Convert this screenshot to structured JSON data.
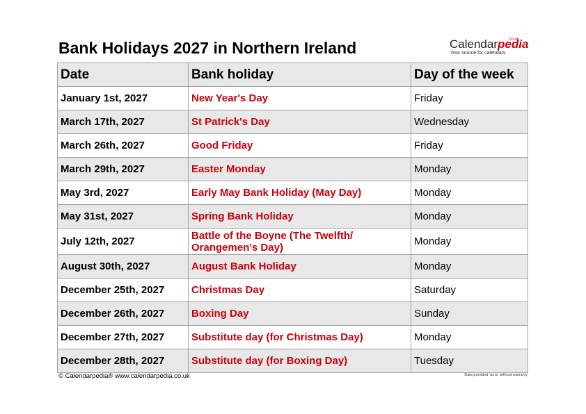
{
  "title": "Bank Holidays 2027 in Northern Ireland",
  "logo": {
    "text_main": "Calendar",
    "text_accent": "pedia",
    "domain_suffix": "co.uk",
    "tagline": "Your source for calendars",
    "accent_color": "#c8000a"
  },
  "table": {
    "headers": [
      "Date",
      "Bank holiday",
      "Day of the week"
    ],
    "rows": [
      {
        "date": "January 1st, 2027",
        "holiday": "New Year's Day",
        "day": "Friday"
      },
      {
        "date": "March 17th, 2027",
        "holiday": "St Patrick's Day",
        "day": "Wednesday"
      },
      {
        "date": "March 26th, 2027",
        "holiday": "Good Friday",
        "day": "Friday"
      },
      {
        "date": "March 29th, 2027",
        "holiday": "Easter Monday",
        "day": "Monday"
      },
      {
        "date": "May 3rd, 2027",
        "holiday": "Early May Bank Holiday (May Day)",
        "day": "Monday"
      },
      {
        "date": "May 31st, 2027",
        "holiday": "Spring Bank Holiday",
        "day": "Monday"
      },
      {
        "date": "July 12th, 2027",
        "holiday": "Battle of the Boyne (The Twelfth/ Orangemen's Day)",
        "day": "Monday"
      },
      {
        "date": "August 30th, 2027",
        "holiday": "August Bank Holiday",
        "day": "Monday"
      },
      {
        "date": "December 25th, 2027",
        "holiday": "Christmas Day",
        "day": "Saturday"
      },
      {
        "date": "December 26th, 2027",
        "holiday": "Boxing Day",
        "day": "Sunday"
      },
      {
        "date": "December 27th, 2027",
        "holiday": "Substitute day (for Christmas Day)",
        "day": "Monday"
      },
      {
        "date": "December 28th, 2027",
        "holiday": "Substitute day (for Boxing Day)",
        "day": "Tuesday"
      }
    ]
  },
  "footer": {
    "copyright": "© Calendarpedia®   www.calendarpedia.co.uk",
    "disclaimer": "Data provided 'as is' without warranty"
  },
  "colors": {
    "holiday_text": "#c8000a",
    "shaded_row": "#e8e8e8",
    "border": "#a0a0a0"
  }
}
